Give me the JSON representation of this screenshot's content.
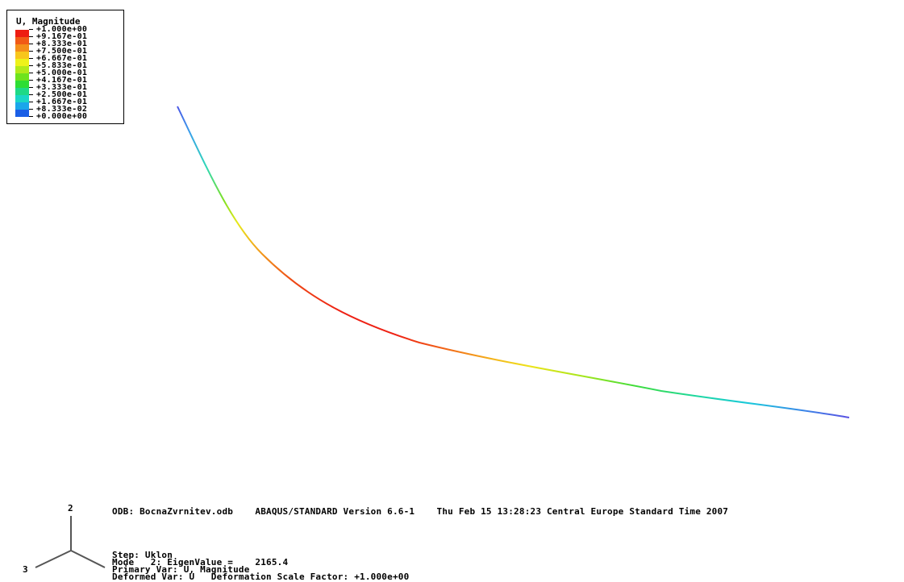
{
  "legend": {
    "title": "U, Magnitude",
    "entries": [
      {
        "label": "+1.000e+00",
        "color": "#ee1c12"
      },
      {
        "label": "+9.167e-01",
        "color": "#f15a16"
      },
      {
        "label": "+8.333e-01",
        "color": "#f48f1a"
      },
      {
        "label": "+7.500e-01",
        "color": "#f8c61c"
      },
      {
        "label": "+6.667e-01",
        "color": "#eef21a"
      },
      {
        "label": "+5.833e-01",
        "color": "#b2ea1a"
      },
      {
        "label": "+5.000e-01",
        "color": "#6ee31e"
      },
      {
        "label": "+4.167e-01",
        "color": "#2ddd34"
      },
      {
        "label": "+3.333e-01",
        "color": "#1ed986"
      },
      {
        "label": "+2.500e-01",
        "color": "#1ad6c6"
      },
      {
        "label": "+1.667e-01",
        "color": "#1aa6ea"
      },
      {
        "label": "+8.333e-02",
        "color": "#1a5fe6"
      },
      {
        "label": "+0.000e+00",
        "color": "#1a1ae0"
      }
    ]
  },
  "info": {
    "odb_line": "ODB: BocnaZvrnitev.odb    ABAQUS/STANDARD Version 6.6-1    Thu Feb 15 13:28:23 Central Europe Standard Time 2007",
    "step_line": "Step: Uklon",
    "mode_line": "Mode   2: EigenValue =    2165.4",
    "primary_line": "Primary Var: U, Magnitude",
    "deformed_line": "Deformed Var: U   Deformation Scale Factor: +1.000e+00"
  },
  "triad": {
    "label_2": "2",
    "label_3": "3"
  }
}
